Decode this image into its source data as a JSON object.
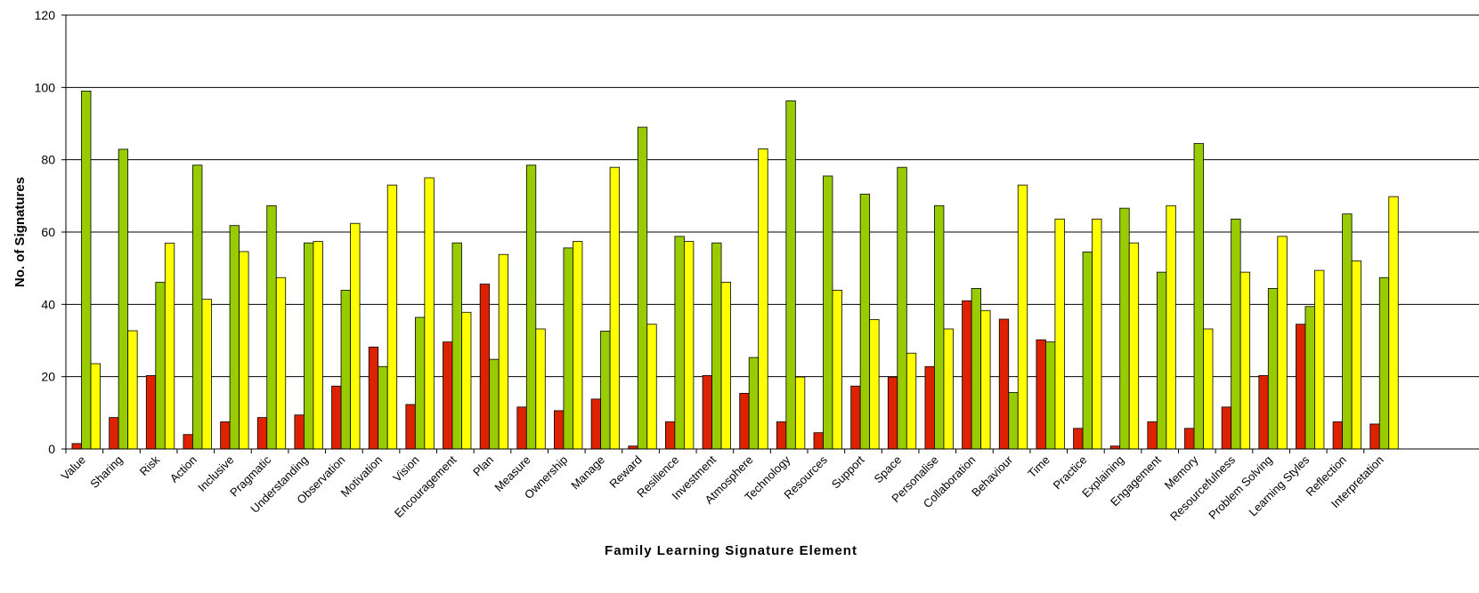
{
  "chart_data": {
    "type": "bar",
    "xlabel": "Family Learning Signature Element",
    "ylabel": "No. of Signatures",
    "ylim": [
      0,
      120
    ],
    "yticks": [
      0,
      20,
      40,
      60,
      80,
      100,
      120
    ],
    "grid": true,
    "legend": "none",
    "categories": [
      "Value",
      "Sharing",
      "Risk",
      "Action",
      "Inclusive",
      "Pragmatic",
      "Understanding",
      "Observation",
      "Motivation",
      "Vision",
      "Encouragement",
      "Plan",
      "Measure",
      "Ownership",
      "Manage",
      "Reward",
      "Resilience",
      "Investment",
      "Atmosphere",
      "Technology",
      "Resources",
      "Support",
      "Space",
      "Personalise",
      "Collaboration",
      "Behaviour",
      "Time",
      "Practice",
      "Explaining",
      "Engagement",
      "Memory",
      "Resourcefulness",
      "Problem Solving",
      "Learning Styles",
      "Reflection",
      "Interpretation"
    ],
    "series": [
      {
        "color": "#dd2200",
        "values": [
          1.5,
          8.7,
          20.3,
          4.0,
          7.5,
          8.7,
          9.4,
          17.4,
          28.2,
          12.3,
          29.6,
          45.6,
          11.6,
          10.6,
          13.8,
          0.8,
          7.5,
          20.3,
          15.4,
          7.5,
          4.5,
          17.4,
          19.9,
          22.8,
          41.0,
          35.9,
          30.2,
          5.7,
          0.8,
          7.5,
          5.7,
          11.6,
          20.3,
          34.5,
          7.5,
          6.9
        ]
      },
      {
        "color": "#99cc00",
        "values": [
          99.0,
          82.9,
          46.1,
          78.5,
          61.8,
          67.3,
          57.0,
          43.9,
          22.8,
          36.4,
          57.0,
          24.8,
          78.5,
          55.6,
          32.6,
          89.0,
          58.8,
          57.0,
          25.3,
          96.3,
          75.5,
          70.5,
          77.9,
          67.3,
          44.4,
          15.6,
          29.6,
          54.5,
          66.6,
          48.9,
          84.5,
          63.6,
          44.4,
          39.4,
          65.0,
          47.4
        ]
      },
      {
        "color": "#ffff00",
        "values": [
          23.6,
          32.7,
          56.9,
          41.4,
          54.6,
          47.4,
          57.4,
          62.4,
          73.0,
          75.0,
          37.8,
          53.8,
          33.2,
          57.4,
          77.9,
          34.5,
          57.4,
          46.1,
          83.0,
          19.9,
          43.9,
          35.8,
          26.5,
          33.2,
          38.3,
          73.0,
          63.6,
          63.6,
          57.0,
          67.3,
          33.2,
          48.9,
          58.8,
          49.4,
          52.0,
          69.8
        ]
      }
    ]
  }
}
